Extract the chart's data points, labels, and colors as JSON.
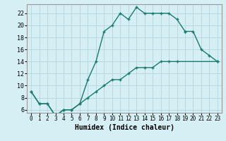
{
  "xlabel": "Humidex (Indice chaleur)",
  "bg_color": "#d6eff5",
  "grid_color": "#b8d8e0",
  "line_color": "#1a7a6e",
  "xlim": [
    -0.5,
    23.5
  ],
  "ylim": [
    5.5,
    23.5
  ],
  "xticks": [
    0,
    1,
    2,
    3,
    4,
    5,
    6,
    7,
    8,
    9,
    10,
    11,
    12,
    13,
    14,
    15,
    16,
    17,
    18,
    19,
    20,
    21,
    22,
    23
  ],
  "yticks": [
    6,
    8,
    10,
    12,
    14,
    16,
    18,
    20,
    22
  ],
  "line1_x": [
    0,
    1,
    2,
    3,
    4,
    5,
    6,
    7,
    8,
    9,
    10,
    11,
    12,
    13,
    14,
    15,
    16,
    17,
    18,
    19
  ],
  "line1_y": [
    9,
    7,
    7,
    5,
    6,
    6,
    7,
    11,
    14,
    19,
    20,
    22,
    21,
    23,
    22,
    22,
    22,
    22,
    21,
    19
  ],
  "line2_x": [
    19,
    20,
    21,
    22,
    23
  ],
  "line2_y": [
    19,
    19,
    16,
    15,
    14
  ],
  "line3_x": [
    0,
    1,
    2,
    3,
    4,
    5,
    6,
    7,
    8,
    9,
    10,
    11,
    12,
    13,
    14,
    15,
    16,
    17,
    18,
    23
  ],
  "line3_y": [
    9,
    7,
    7,
    5,
    6,
    6,
    7,
    8,
    9,
    10,
    11,
    11,
    12,
    13,
    13,
    13,
    14,
    14,
    14,
    14
  ]
}
